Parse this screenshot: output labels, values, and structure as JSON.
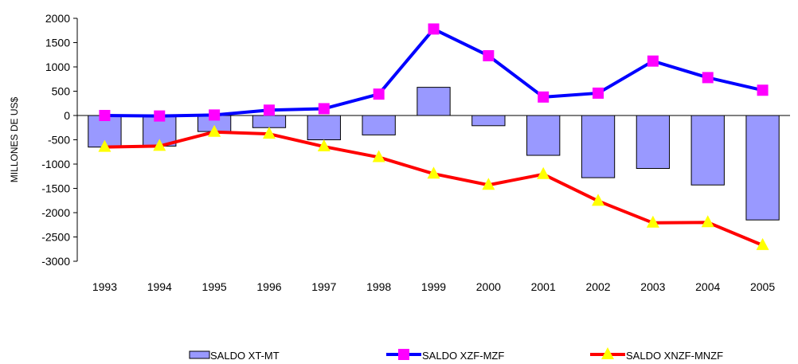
{
  "chart_data": {
    "type": "bar+line",
    "ylabel": "MILLONES DE US$",
    "ylim": [
      -3000,
      2000
    ],
    "yticks": [
      2000,
      1500,
      1000,
      500,
      0,
      -500,
      -1000,
      -1500,
      -2000,
      -2500,
      -3000
    ],
    "ytick_labels": [
      "2000",
      "1500",
      "1000",
      "500",
      "0",
      "-500",
      "-1000",
      "-1500",
      "-2000",
      "-2500",
      "-3000"
    ],
    "categories": [
      "1993",
      "1994",
      "1995",
      "1996",
      "1997",
      "1998",
      "1999",
      "2000",
      "2001",
      "2002",
      "2003",
      "2004",
      "2005"
    ],
    "grid": false,
    "legend_position": "bottom",
    "series": [
      {
        "name": "SALDO XT-MT",
        "type": "bar",
        "color": "#9999ff",
        "values": [
          -650,
          -630,
          -330,
          -250,
          -500,
          -400,
          580,
          -210,
          -820,
          -1280,
          -1090,
          -1430,
          -2150
        ]
      },
      {
        "name": "SALDO XZF-MZF",
        "type": "line",
        "color": "#0000ff",
        "marker": "square",
        "marker_color": "#ff00ff",
        "values": [
          0,
          -10,
          10,
          110,
          140,
          440,
          1780,
          1230,
          380,
          460,
          1120,
          780,
          520
        ]
      },
      {
        "name": "SALDO XNZF-MNZF",
        "type": "line",
        "color": "#ff0000",
        "marker": "triangle",
        "marker_color": "#ffff00",
        "values": [
          -650,
          -630,
          -340,
          -380,
          -640,
          -860,
          -1200,
          -1430,
          -1210,
          -1760,
          -2210,
          -2200,
          -2670
        ]
      }
    ]
  }
}
